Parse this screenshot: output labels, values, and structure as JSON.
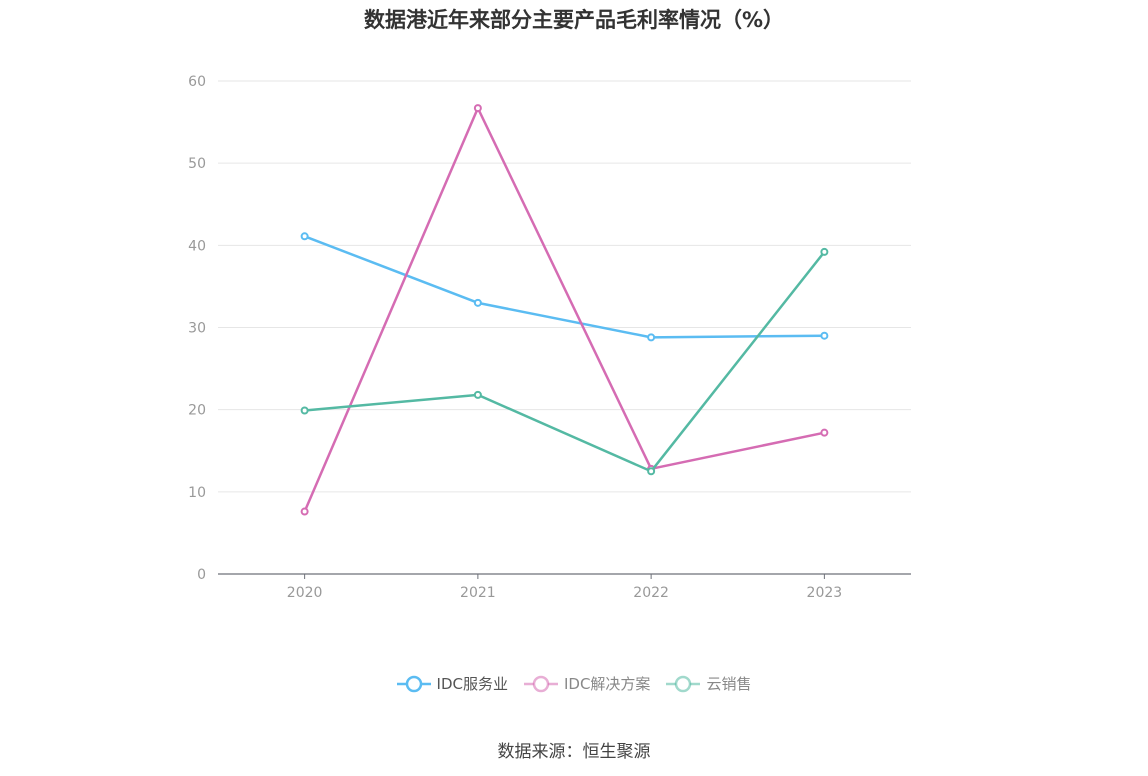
{
  "chart_data": {
    "type": "line",
    "title": "数据港近年来部分主要产品毛利率情况（%）",
    "categories": [
      "2020",
      "2021",
      "2022",
      "2023"
    ],
    "ylim": [
      0,
      60
    ],
    "yticks": [
      "0",
      "10",
      "20",
      "30",
      "40",
      "50",
      "60"
    ],
    "grid": true,
    "legend_position": "bottom",
    "series": [
      {
        "name": "IDC服务业",
        "color": "#5bbcf2",
        "values": [
          41.1,
          33.0,
          28.8,
          29.0
        ]
      },
      {
        "name": "IDC解决方案",
        "color": "#d56cb3",
        "values": [
          7.6,
          56.7,
          12.8,
          17.2
        ]
      },
      {
        "name": "云销售",
        "color": "#54b9a3",
        "values": [
          19.9,
          21.8,
          12.5,
          39.2
        ]
      }
    ]
  },
  "source": "数据来源：恒生聚源"
}
